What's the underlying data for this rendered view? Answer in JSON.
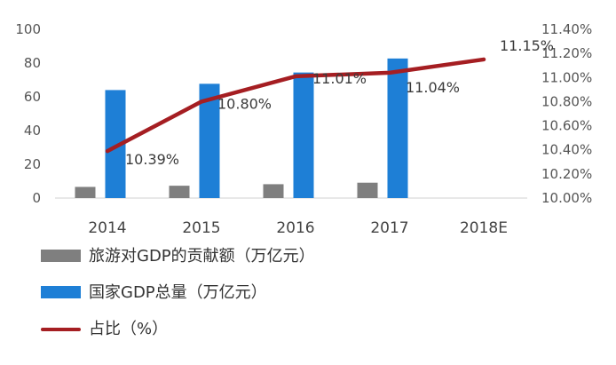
{
  "colors": {
    "tourism_bar": "#7f7f7f",
    "gdp_bar": "#1e7fd6",
    "share_line": "#a51e22",
    "axis_text": "#555555"
  },
  "chart_data": {
    "type": "bar",
    "categories": [
      "2014",
      "2015",
      "2016",
      "2017",
      "2018E"
    ],
    "series": [
      {
        "name": "旅游对GDP的贡献额（万亿元）",
        "type": "bar",
        "axis": "left",
        "values": [
          6.6,
          7.3,
          8.2,
          9.1,
          null
        ]
      },
      {
        "name": "国家GDP总量（万亿元）",
        "type": "bar",
        "axis": "left",
        "values": [
          64.0,
          67.7,
          74.4,
          82.7,
          null
        ]
      },
      {
        "name": "占比（%）",
        "type": "line",
        "axis": "right",
        "values": [
          10.39,
          10.8,
          11.01,
          11.04,
          11.15
        ]
      }
    ],
    "point_labels": [
      "10.39%",
      "10.80%",
      "11.01%",
      "11.04%",
      "11.15%"
    ],
    "left_axis": {
      "range": [
        0,
        100
      ],
      "ticks": [
        "0",
        "20",
        "40",
        "60",
        "80",
        "100"
      ]
    },
    "right_axis": {
      "range": [
        10.0,
        11.4
      ],
      "ticks": [
        "10.00%",
        "10.20%",
        "10.40%",
        "10.60%",
        "10.80%",
        "11.00%",
        "11.20%",
        "11.40%"
      ]
    },
    "grid": false,
    "legend_position": "bottom-left"
  }
}
